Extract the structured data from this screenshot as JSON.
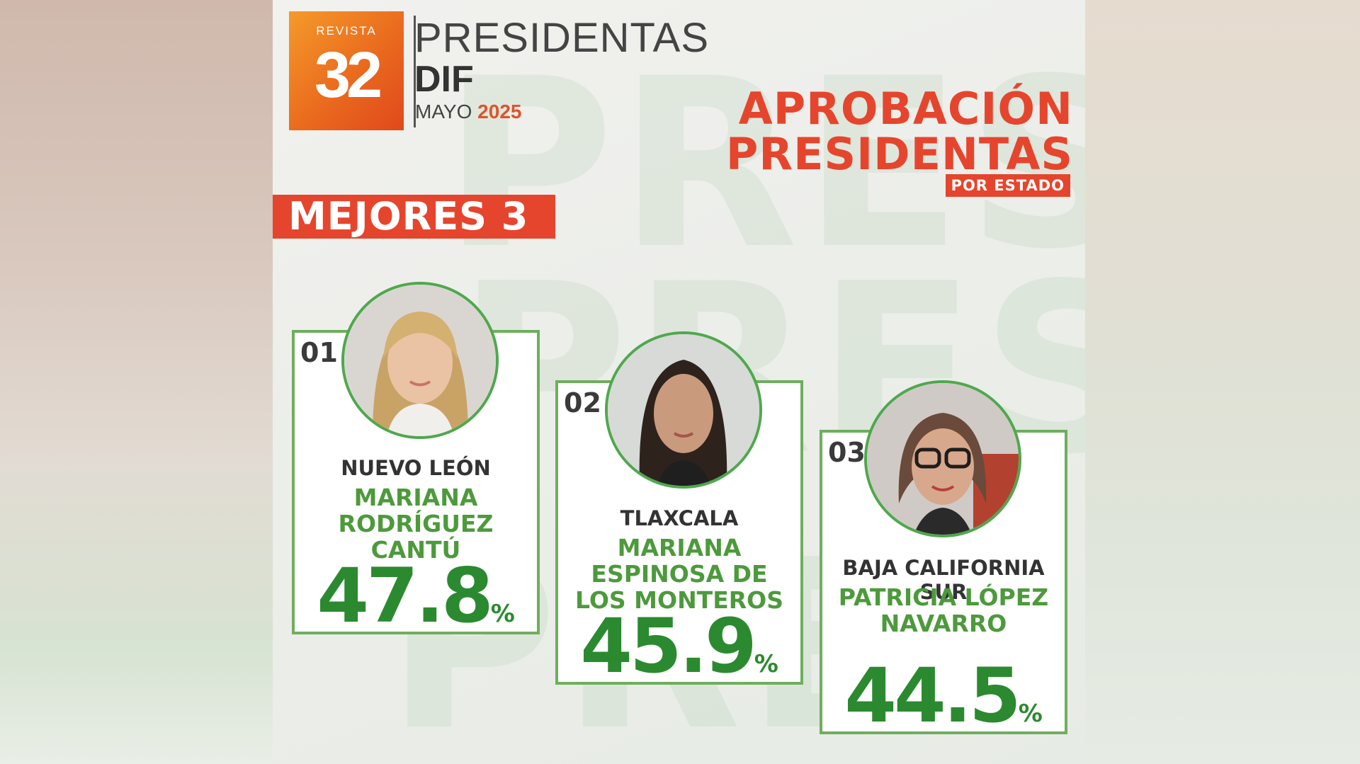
{
  "brand": {
    "logo_top": "REVISTA",
    "logo_number": "32",
    "title": "PRESIDENTAS",
    "subtitle": "DIF",
    "month": "MAYO",
    "year": "2025"
  },
  "headline": {
    "line1": "APROBACIÓN",
    "line2": "PRESIDENTAS",
    "tag": "POR ESTADO"
  },
  "section_label": "MEJORES 3",
  "background_word": "PRESIDENTAS",
  "cards": [
    {
      "rank": "01",
      "state": "NUEVO LEÓN",
      "name_line1": "MARIANA RODRÍGUEZ",
      "name_line2": "CANTÚ",
      "value": "47.8",
      "unit": "%",
      "photo": "portrait-blonde-woman"
    },
    {
      "rank": "02",
      "state": "TLAXCALA",
      "name_line1": "MARIANA ESPINOSA DE",
      "name_line2": "LOS MONTEROS",
      "value": "45.9",
      "unit": "%",
      "photo": "portrait-dark-haired-woman"
    },
    {
      "rank": "03",
      "state": "BAJA CALIFORNIA SUR",
      "name_line1": "PATRICIA LÓPEZ",
      "name_line2": "NAVARRO",
      "value": "44.5",
      "unit": "%",
      "photo": "portrait-woman-glasses"
    }
  ],
  "colors": {
    "accent_red": "#e6452d",
    "accent_green": "#2b8a2f",
    "card_border": "#6fae5e",
    "logo_orange": "#ea6a1e"
  }
}
